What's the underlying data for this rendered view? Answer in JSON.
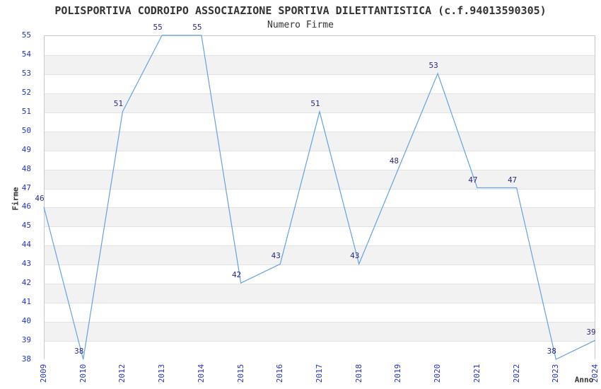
{
  "header": {
    "title": "POLISPORTIVA CODROIPO ASSOCIAZIONE SPORTIVA DILETTANTISTICA (c.f.94013590305)",
    "subtitle": "Numero Firme"
  },
  "chart_data": {
    "type": "line",
    "title": "POLISPORTIVA CODROIPO ASSOCIAZIONE SPORTIVA DILETTANTISTICA (c.f.94013590305)",
    "subtitle": "Numero Firme",
    "xlabel": "Anno",
    "ylabel": "Firme",
    "categories": [
      "2009",
      "2010",
      "2012",
      "2013",
      "2014",
      "2015",
      "2016",
      "2017",
      "2018",
      "2019",
      "2020",
      "2021",
      "2022",
      "2023",
      "2024"
    ],
    "values": [
      46,
      38,
      51,
      55,
      55,
      42,
      43,
      51,
      43,
      48,
      53,
      47,
      47,
      38,
      39
    ],
    "ylim": [
      38,
      55
    ],
    "ytick_step": 1,
    "grid": "horizontal-alternating-bands",
    "legend": "none",
    "point_labels_shown": true,
    "colors": {
      "line": "#64a1e6",
      "tick_label": "#2233cc",
      "point_label": "#2b2b85",
      "band_gray": "#f2f2f2",
      "grid_line": "#e3e3e3",
      "plot_border": "#c9c9c9",
      "text": "#333333",
      "background": "#ffffff"
    }
  }
}
